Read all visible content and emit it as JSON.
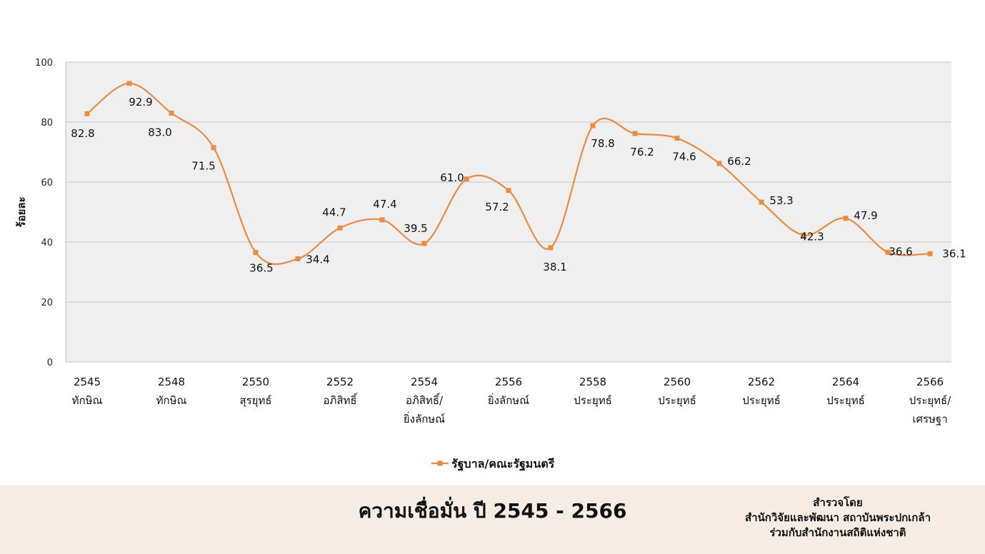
{
  "chart_data": {
    "type": "line",
    "ylabel": "ร้อยละ",
    "ylim": [
      0,
      100
    ],
    "yticks": [
      0,
      20,
      40,
      60,
      80,
      100
    ],
    "grid": true,
    "x": [
      "2545",
      "2546",
      "2548",
      "2549",
      "2550",
      "2551",
      "2552",
      "2553",
      "2554",
      "2555",
      "2556",
      "2557",
      "2558",
      "2559",
      "2560",
      "2561",
      "2562",
      "2563",
      "2564",
      "2565",
      "2566"
    ],
    "x_tick_labels": [
      {
        "year": "2545",
        "name": [
          "ทักษิณ"
        ]
      },
      {
        "year": "2548",
        "name": [
          "ทักษิณ"
        ]
      },
      {
        "year": "2550",
        "name": [
          "สุรยุทธ์"
        ]
      },
      {
        "year": "2552",
        "name": [
          "อภิสิทธิ์"
        ]
      },
      {
        "year": "2554",
        "name": [
          "อภิสิทธิ์/",
          "ยิ่งลักษณ์"
        ]
      },
      {
        "year": "2556",
        "name": [
          "ยิ่งลักษณ์"
        ]
      },
      {
        "year": "2558",
        "name": [
          "ประยุทธ์"
        ]
      },
      {
        "year": "2560",
        "name": [
          "ประยุทธ์"
        ]
      },
      {
        "year": "2562",
        "name": [
          "ประยุทธ์"
        ]
      },
      {
        "year": "2564",
        "name": [
          "ประยุทธ์"
        ]
      },
      {
        "year": "2566",
        "name": [
          "ประยุทธ์/",
          "เศรษฐา"
        ]
      }
    ],
    "series": [
      {
        "name": "รัฐบาล/คณะรัฐมนตรี",
        "color": "#ed8a3c",
        "values": [
          82.8,
          92.9,
          83.0,
          71.5,
          36.5,
          34.4,
          44.7,
          47.4,
          39.5,
          61.0,
          57.2,
          38.1,
          78.8,
          76.2,
          74.6,
          66.2,
          53.3,
          42.3,
          47.9,
          36.6,
          36.1
        ],
        "value_labels": [
          "82.8",
          "92.9",
          "83.0",
          "71.5",
          "36.5",
          "34.4",
          "44.7",
          "47.4",
          "39.5",
          "61.0",
          "57.2",
          "38.1",
          "78.8",
          "76.2",
          "74.6",
          "66.2",
          "53.3",
          "42.3",
          "47.9",
          "36.6",
          "36.1"
        ]
      }
    ],
    "legend": "bottom-center"
  },
  "footer": {
    "title": "ความเชื่อมั่น ปี 2545 - 2566",
    "source_lines": [
      "สำรวจโดย",
      "สำนักวิจัยและพัฒนา สถาบันพระปกเกล้า",
      "ร่วมกับสำนักงานสถิติแห่งชาติ"
    ]
  },
  "colors": {
    "plot_bg": "#efefef",
    "grid": "#c8c8c8",
    "footer_bg": "#f5ece6"
  }
}
